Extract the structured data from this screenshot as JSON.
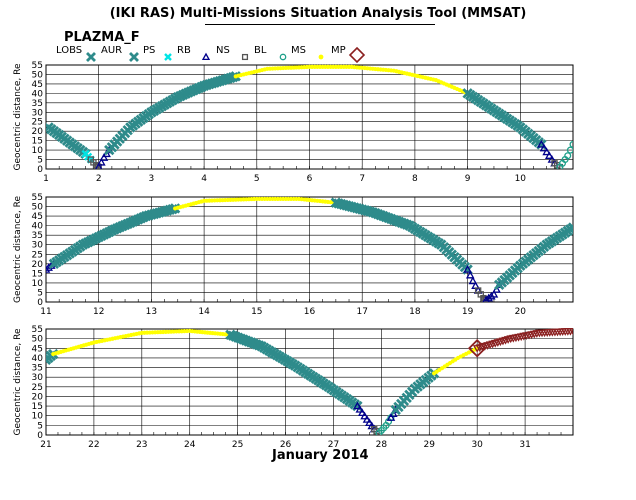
{
  "header": {
    "title": "(IKI RAS) Multi-Missions Situation Analysis Tool (MMSAT)",
    "mission": "PLAZMA_F",
    "month_label": "January 2014"
  },
  "legend": [
    {
      "label": "LOBS",
      "icon": "lobs-icon",
      "color": "#2E8B8B"
    },
    {
      "label": "AUR",
      "icon": "aur-icon",
      "color": "#2E8B8B"
    },
    {
      "label": "PS",
      "icon": "ps-icon",
      "color": "#00E5E5"
    },
    {
      "label": "RB",
      "icon": "rb-icon",
      "color": "#00008B"
    },
    {
      "label": "NS",
      "icon": "ns-icon",
      "color": "#555555"
    },
    {
      "label": "BL",
      "icon": "bl-icon",
      "color": "#1FA08A"
    },
    {
      "label": "MS",
      "icon": "ms-icon",
      "color": "#FFFF00"
    },
    {
      "label": "MP",
      "icon": "mp-icon",
      "color": "#8B2020"
    }
  ],
  "chart_data": [
    {
      "type": "scatter",
      "ylabel": "Geocentric distance, Re",
      "xlim": [
        1,
        11
      ],
      "ylim": [
        0,
        55
      ],
      "xticks": [
        "1",
        "2",
        "3",
        "4",
        "5",
        "6",
        "7",
        "8",
        "9",
        "10"
      ],
      "yticks": [
        "0",
        "5",
        "10",
        "15",
        "20",
        "25",
        "30",
        "35",
        "40",
        "45",
        "50",
        "55"
      ],
      "grid": true,
      "segments": [
        {
          "region": "LOBS",
          "x": [
            1.05,
            1.45,
            1.75
          ],
          "y": [
            22,
            14,
            8
          ]
        },
        {
          "region": "PS",
          "x": [
            1.75,
            1.85
          ],
          "y": [
            8,
            5
          ]
        },
        {
          "region": "NS",
          "x": [
            1.85,
            1.95,
            2.0
          ],
          "y": [
            5,
            2,
            1
          ]
        },
        {
          "region": "RB",
          "x": [
            2.0,
            2.1,
            2.2
          ],
          "y": [
            1,
            6,
            10
          ]
        },
        {
          "region": "LOBS",
          "x": [
            2.2,
            2.6,
            3.0,
            3.5,
            4.0,
            4.6
          ],
          "y": [
            10,
            22,
            30,
            38,
            44,
            49
          ]
        },
        {
          "region": "MS",
          "x": [
            4.6,
            5.2,
            6.0,
            6.8,
            7.6,
            8.4,
            9.0
          ],
          "y": [
            49,
            53,
            54,
            54,
            52,
            47,
            40
          ]
        },
        {
          "region": "LOBS",
          "x": [
            9.0,
            9.5,
            10.0,
            10.4
          ],
          "y": [
            40,
            31,
            22,
            13
          ]
        },
        {
          "region": "RB",
          "x": [
            10.4,
            10.55,
            10.65
          ],
          "y": [
            13,
            7,
            3
          ]
        },
        {
          "region": "NS",
          "x": [
            10.65,
            10.75
          ],
          "y": [
            3,
            1
          ]
        },
        {
          "region": "BL",
          "x": [
            10.75,
            10.9,
            11.0
          ],
          "y": [
            1,
            7,
            13
          ]
        }
      ]
    },
    {
      "type": "scatter",
      "ylabel": "Geocentric distance, Re",
      "xlim": [
        11,
        21
      ],
      "ylim": [
        0,
        55
      ],
      "xticks": [
        "11",
        "12",
        "13",
        "14",
        "15",
        "16",
        "17",
        "18",
        "19",
        "20"
      ],
      "yticks": [
        "0",
        "5",
        "10",
        "15",
        "20",
        "25",
        "30",
        "35",
        "40",
        "45",
        "50",
        "55"
      ],
      "grid": true,
      "segments": [
        {
          "region": "RB",
          "x": [
            11.0,
            11.15
          ],
          "y": [
            17,
            20
          ]
        },
        {
          "region": "LOBS",
          "x": [
            11.15,
            11.7,
            12.3,
            12.9,
            13.45
          ],
          "y": [
            20,
            30,
            38,
            45,
            49
          ]
        },
        {
          "region": "MS",
          "x": [
            13.45,
            14.0,
            15.0,
            15.8,
            16.5
          ],
          "y": [
            49,
            53,
            54,
            54,
            52
          ]
        },
        {
          "region": "LOBS",
          "x": [
            16.5,
            17.2,
            17.9,
            18.5,
            19.0
          ],
          "y": [
            52,
            47,
            40,
            30,
            17
          ]
        },
        {
          "region": "RB",
          "x": [
            19.0,
            19.1,
            19.2
          ],
          "y": [
            17,
            11,
            6
          ]
        },
        {
          "region": "NS",
          "x": [
            19.2,
            19.3,
            19.35
          ],
          "y": [
            6,
            2,
            1
          ]
        },
        {
          "region": "RB",
          "x": [
            19.35,
            19.5,
            19.6
          ],
          "y": [
            1,
            4,
            9
          ]
        },
        {
          "region": "LOBS",
          "x": [
            19.6,
            20.0,
            20.5,
            21.0
          ],
          "y": [
            9,
            19,
            30,
            39
          ]
        }
      ]
    },
    {
      "type": "scatter",
      "ylabel": "Geocentric distance, Re",
      "xlim": [
        21,
        32
      ],
      "ylim": [
        0,
        55
      ],
      "xticks": [
        "21",
        "22",
        "23",
        "24",
        "25",
        "26",
        "27",
        "28",
        "29",
        "30",
        "31"
      ],
      "yticks": [
        "0",
        "5",
        "10",
        "15",
        "20",
        "25",
        "30",
        "35",
        "40",
        "45",
        "50",
        "55"
      ],
      "grid": true,
      "segments": [
        {
          "region": "LOBS",
          "x": [
            21.0,
            21.15
          ],
          "y": [
            39,
            42
          ]
        },
        {
          "region": "MS",
          "x": [
            21.15,
            22.0,
            23.0,
            24.0,
            24.85
          ],
          "y": [
            42,
            48,
            53,
            54,
            52
          ]
        },
        {
          "region": "LOBS",
          "x": [
            24.85,
            25.5,
            26.2,
            26.9,
            27.5
          ],
          "y": [
            52,
            46,
            36,
            25,
            15
          ]
        },
        {
          "region": "RB",
          "x": [
            27.5,
            27.7,
            27.85
          ],
          "y": [
            15,
            8,
            3
          ]
        },
        {
          "region": "NS",
          "x": [
            27.85,
            27.95
          ],
          "y": [
            3,
            1
          ]
        },
        {
          "region": "BL",
          "x": [
            27.95,
            28.1,
            28.2
          ],
          "y": [
            1,
            5,
            9
          ]
        },
        {
          "region": "RB",
          "x": [
            28.2,
            28.3
          ],
          "y": [
            9,
            13
          ]
        },
        {
          "region": "LOBS",
          "x": [
            28.3,
            28.7,
            29.1
          ],
          "y": [
            13,
            24,
            32
          ]
        },
        {
          "region": "MS",
          "x": [
            29.1,
            29.6,
            30.0
          ],
          "y": [
            32,
            40,
            45
          ]
        },
        {
          "region": "MP",
          "x": [
            30.0,
            30.7,
            31.3,
            32.0
          ],
          "y": [
            45,
            50,
            53,
            54
          ]
        }
      ],
      "annotations": [
        {
          "region": "MP",
          "x": 30.0,
          "y": 45
        }
      ]
    }
  ]
}
